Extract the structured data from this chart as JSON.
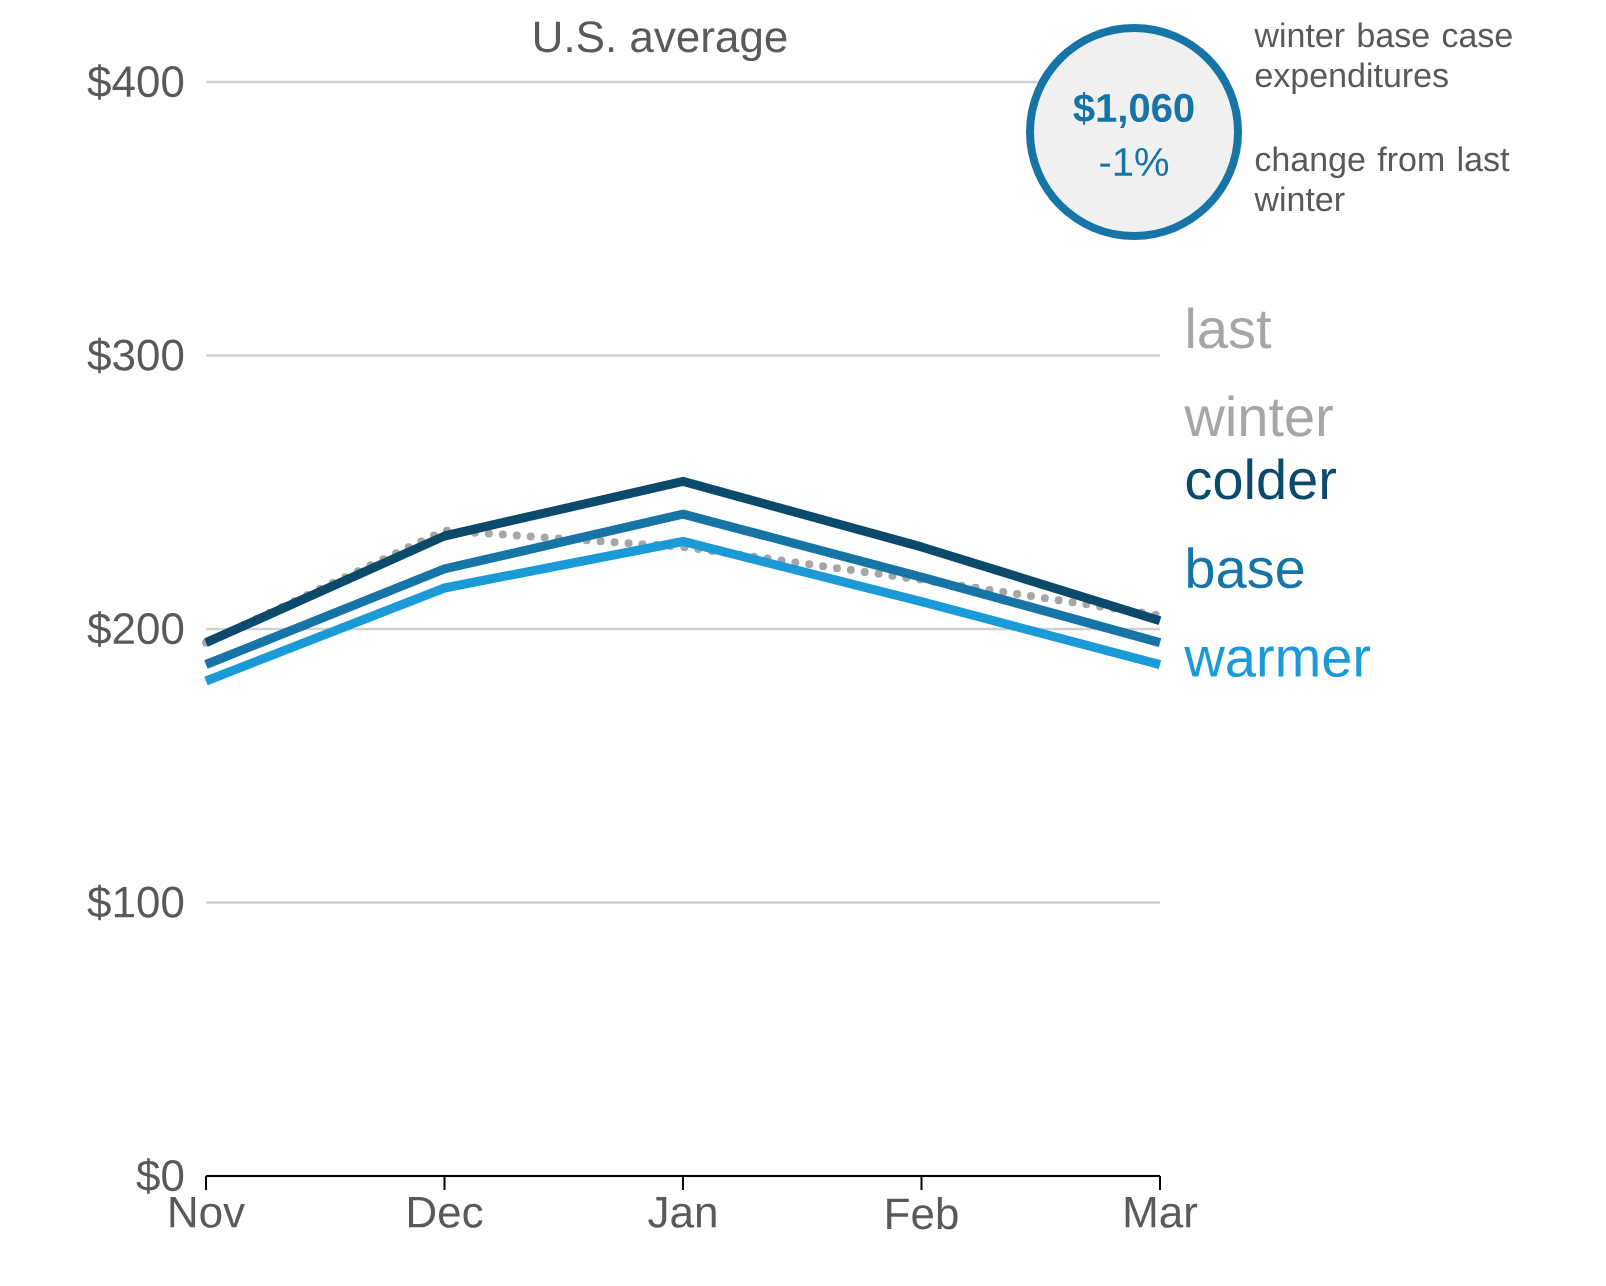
{
  "chart_data": {
    "type": "line",
    "title": "U.S. average",
    "categories": [
      "Nov",
      "Dec",
      "Jan",
      "Feb",
      "Mar"
    ],
    "series": [
      {
        "name": "last winter",
        "color": "#a6a6a6",
        "line_style": "dotted",
        "values": [
          195,
          236,
          230,
          218,
          205
        ]
      },
      {
        "name": "colder",
        "color": "#0b4a6b",
        "values": [
          195,
          234,
          254,
          230,
          203
        ]
      },
      {
        "name": "base",
        "color": "#1674a6",
        "values": [
          187,
          222,
          242,
          219,
          195
        ]
      },
      {
        "name": "warmer",
        "color": "#1a9ad6",
        "values": [
          181,
          215,
          232,
          210,
          187
        ]
      }
    ],
    "ylim": [
      0,
      400
    ],
    "yticks": [
      {
        "value": 0,
        "label": "$0"
      },
      {
        "value": 100,
        "label": "$100"
      },
      {
        "value": 200,
        "label": "$200"
      },
      {
        "value": 300,
        "label": "$300"
      },
      {
        "value": 400,
        "label": "$400"
      }
    ],
    "grid": "y",
    "legend": "right",
    "annotations": [
      "$1,060",
      "-1%",
      "winter base case expenditures",
      "change from last winter"
    ]
  }
}
